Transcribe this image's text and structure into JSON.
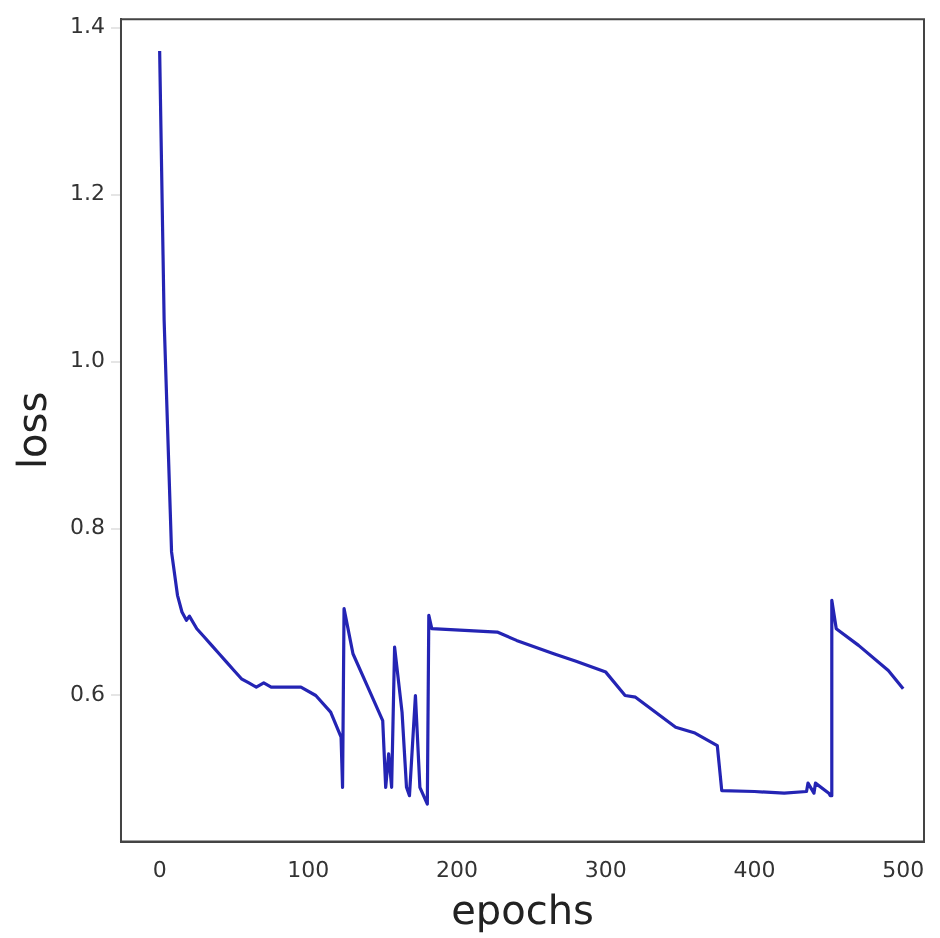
{
  "chart_data": {
    "type": "line",
    "xlabel": "epochs",
    "ylabel": "loss",
    "xlim": [
      -26,
      514
    ],
    "ylim": [
      0.425,
      1.41
    ],
    "xticks": [
      0,
      100,
      200,
      300,
      400,
      500
    ],
    "yticks": [
      {
        "value": 0.6,
        "label": "0.6"
      },
      {
        "value": 0.8,
        "label": "0.8"
      },
      {
        "value": 1.0,
        "label": "1.0"
      },
      {
        "value": 1.2,
        "label": "1.2"
      },
      {
        "value": 1.4,
        "label": "1.4"
      }
    ],
    "grid": false,
    "legend": false,
    "series": [
      {
        "color": "#2424b4",
        "x": [
          0,
          3,
          8,
          12,
          15,
          18,
          20,
          25,
          30,
          35,
          40,
          45,
          50,
          55,
          60,
          65,
          70,
          75,
          80,
          95,
          105,
          115,
          122,
          123,
          124,
          130,
          140,
          150,
          152,
          154,
          156,
          158,
          163,
          166,
          168,
          172,
          175,
          180,
          181,
          183,
          227,
          240,
          265,
          280,
          300,
          313,
          320,
          347,
          360,
          375,
          378,
          400,
          420,
          435,
          436,
          440,
          441,
          450,
          451,
          452,
          455,
          470,
          490,
          500
        ],
        "values": [
          1.372,
          1.05,
          0.772,
          0.72,
          0.7,
          0.69,
          0.695,
          0.68,
          0.67,
          0.66,
          0.65,
          0.64,
          0.63,
          0.62,
          0.615,
          0.61,
          0.615,
          0.61,
          0.61,
          0.61,
          0.6,
          0.58,
          0.55,
          0.49,
          0.704,
          0.65,
          0.61,
          0.57,
          0.49,
          0.53,
          0.49,
          0.658,
          0.58,
          0.49,
          0.48,
          0.6,
          0.49,
          0.47,
          0.696,
          0.68,
          0.676,
          0.666,
          0.65,
          0.641,
          0.628,
          0.6,
          0.598,
          0.562,
          0.555,
          0.54,
          0.486,
          0.485,
          0.483,
          0.485,
          0.495,
          0.483,
          0.495,
          0.483,
          0.48,
          0.714,
          0.68,
          0.66,
          0.63,
          0.608
        ]
      }
    ]
  }
}
